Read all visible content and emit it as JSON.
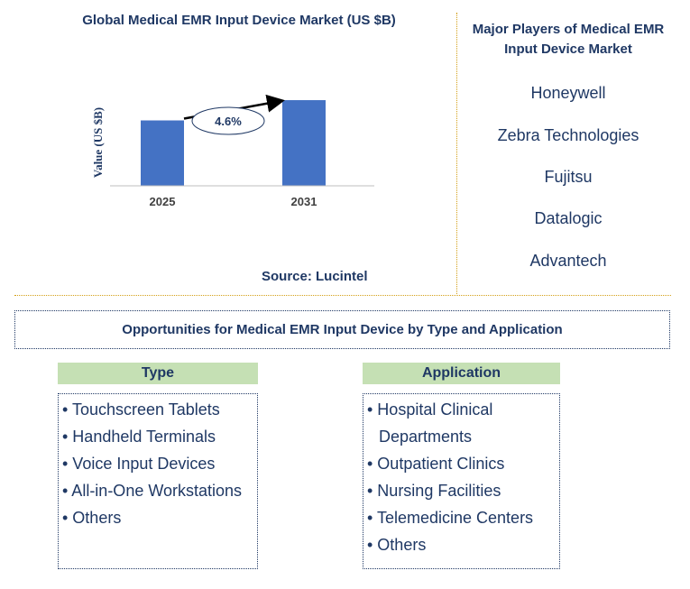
{
  "chart": {
    "title": "Global Medical EMR Input Device Market (US $B)",
    "source": "Source: Lucintel",
    "growth_label": "4.6%"
  },
  "chart_data": {
    "type": "bar",
    "title": "Global Medical EMR Input Device Market (US $B)",
    "ylabel": "Value (US $B)",
    "xlabel": "",
    "categories": [
      "2025",
      "2031"
    ],
    "values": [
      1.0,
      1.31
    ],
    "ylim": [
      0,
      1.6
    ],
    "grid": false,
    "bar_color": "#4472c4",
    "annotation": "4.6%"
  },
  "players": {
    "title": "Major Players of Medical EMR Input Device Market",
    "items": [
      "Honeywell",
      "Zebra Technologies",
      "Fujitsu",
      "Datalogic",
      "Advantech"
    ]
  },
  "opportunities": {
    "title": "Opportunities for Medical EMR Input Device by Type and Application"
  },
  "type_column": {
    "header": "Type",
    "items": [
      "• Touchscreen Tablets",
      "• Handheld Terminals",
      "• Voice Input Devices",
      "• All-in-One Workstations",
      "• Others"
    ]
  },
  "application_column": {
    "header": "Application",
    "items": [
      "• Hospital Clinical Departments",
      "• Outpatient Clinics",
      "• Nursing Facilities",
      "• Telemedicine Centers",
      "• Others"
    ]
  },
  "colors": {
    "navy": "#1f3864",
    "bar": "#4472c4",
    "header_green": "#c5e0b4",
    "divider_gold": "#d4a017"
  }
}
